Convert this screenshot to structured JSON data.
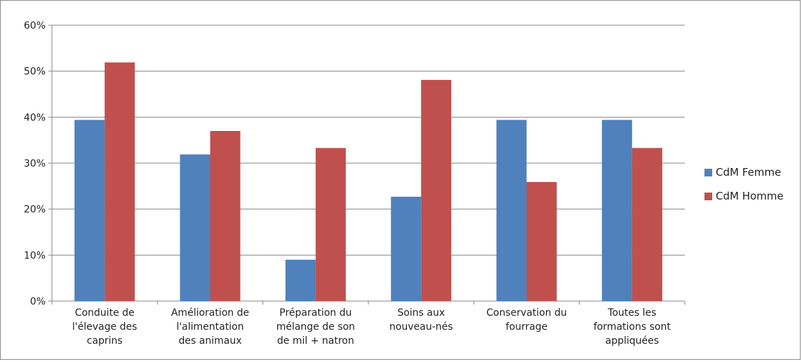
{
  "chart_data": {
    "type": "bar",
    "categories": [
      [
        "Conduite de",
        "l'élevage des",
        "caprins"
      ],
      [
        "Amélioration de",
        "l'alimentation",
        "des animaux"
      ],
      [
        "Préparation du",
        "mélange de son",
        "de mil + natron"
      ],
      [
        "Soins aux",
        "nouveau-nés"
      ],
      [
        "Conservation du",
        "fourrage"
      ],
      [
        "Toutes les",
        "formations sont",
        "appliquées"
      ]
    ],
    "series": [
      {
        "name": "CdM Femme",
        "color": "#4f81bd",
        "values": [
          39.4,
          31.9,
          9.0,
          22.7,
          39.4,
          39.4
        ]
      },
      {
        "name": "CdM Homme",
        "color": "#c0504d",
        "values": [
          51.9,
          37.0,
          33.3,
          48.1,
          25.9,
          33.3
        ]
      }
    ],
    "ylim": [
      0,
      60
    ],
    "yticks": [
      "0%",
      "10%",
      "20%",
      "30%",
      "40%",
      "50%",
      "60%"
    ],
    "grid": true,
    "legend_position": "right"
  }
}
